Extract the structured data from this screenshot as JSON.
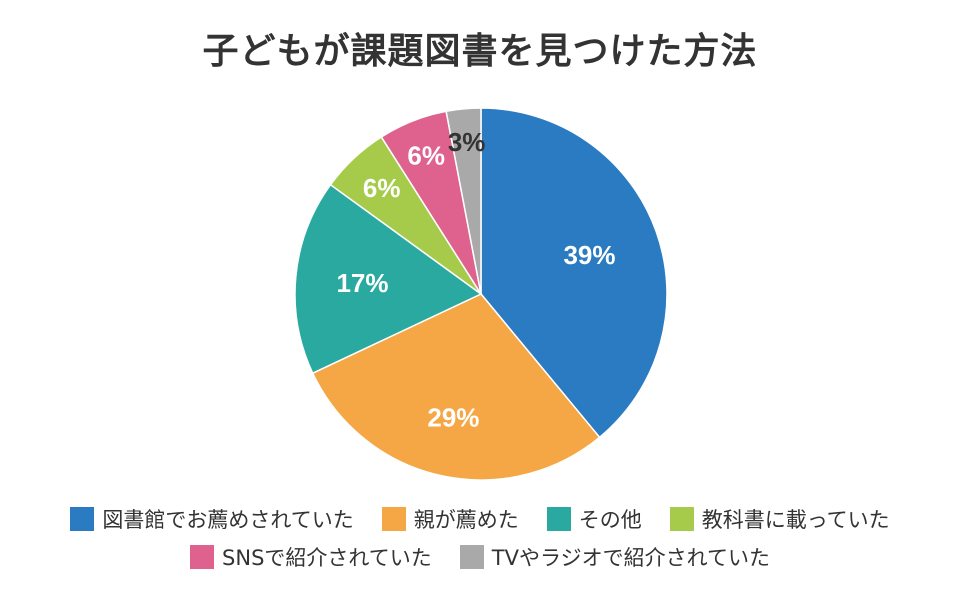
{
  "chart_data": {
    "type": "pie",
    "title": "子どもが課題図書を見つけた方法",
    "slices": [
      {
        "label": "図書館でお薦めされていた",
        "value": 39,
        "display": "39%",
        "color": "#2a7bc1"
      },
      {
        "label": "親が薦めた",
        "value": 29,
        "display": "29%",
        "color": "#f6a745"
      },
      {
        "label": "その他",
        "value": 17,
        "display": "17%",
        "color": "#2aa9a1"
      },
      {
        "label": "教科書に載っていた",
        "value": 6,
        "display": "6%",
        "color": "#a6ca49"
      },
      {
        "label": "SNSで紹介されていた",
        "value": 6,
        "display": "6%",
        "color": "#df628e"
      },
      {
        "label": "TVやラジオで紹介されていた",
        "value": 3,
        "display": "3%",
        "color": "#a9a9a9"
      }
    ],
    "legend_placement": "bottom"
  }
}
